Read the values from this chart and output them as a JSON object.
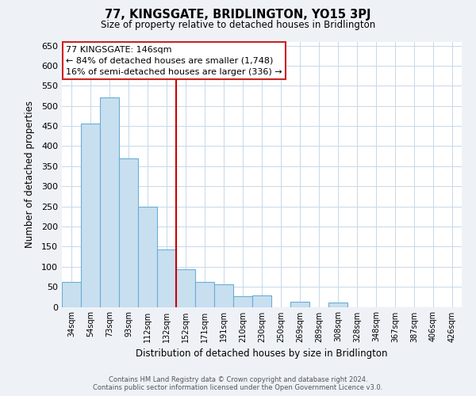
{
  "title": "77, KINGSGATE, BRIDLINGTON, YO15 3PJ",
  "subtitle": "Size of property relative to detached houses in Bridlington",
  "xlabel": "Distribution of detached houses by size in Bridlington",
  "ylabel": "Number of detached properties",
  "bar_labels": [
    "34sqm",
    "54sqm",
    "73sqm",
    "93sqm",
    "112sqm",
    "132sqm",
    "152sqm",
    "171sqm",
    "191sqm",
    "210sqm",
    "230sqm",
    "250sqm",
    "269sqm",
    "289sqm",
    "308sqm",
    "328sqm",
    "348sqm",
    "367sqm",
    "387sqm",
    "406sqm",
    "426sqm"
  ],
  "bar_values": [
    62,
    456,
    521,
    370,
    249,
    143,
    93,
    62,
    57,
    27,
    28,
    0,
    13,
    0,
    10,
    0,
    0,
    0,
    0,
    0,
    0
  ],
  "bar_color": "#c8dff0",
  "bar_edge_color": "#6aaed6",
  "marker_index": 6,
  "marker_label": "77 KINGSGATE: 146sqm",
  "marker_color": "#cc0000",
  "annotation_line1": "← 84% of detached houses are smaller (1,748)",
  "annotation_line2": "16% of semi-detached houses are larger (336) →",
  "ylim": [
    0,
    660
  ],
  "yticks": [
    0,
    50,
    100,
    150,
    200,
    250,
    300,
    350,
    400,
    450,
    500,
    550,
    600,
    650
  ],
  "footer1": "Contains HM Land Registry data © Crown copyright and database right 2024.",
  "footer2": "Contains public sector information licensed under the Open Government Licence v3.0.",
  "background_color": "#eef2f7",
  "plot_background": "#ffffff",
  "grid_color": "#c8d8e8"
}
